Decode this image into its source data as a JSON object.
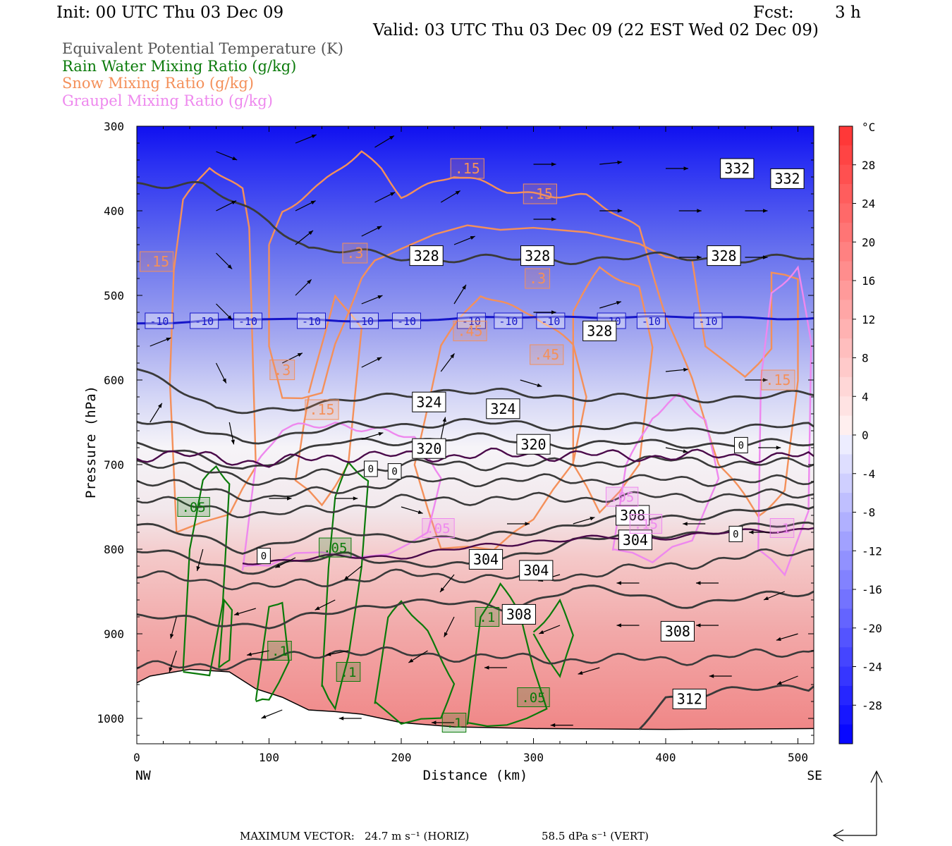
{
  "header": {
    "init": "Init: 00 UTC Thu 03 Dec 09",
    "fcst_label": "Fcst:",
    "fcst_value": "3 h",
    "valid": "Valid: 03 UTC Thu 03 Dec 09 (22 EST Wed 02 Dec 09)"
  },
  "legend": [
    {
      "text": "Equivalent Potential Temperature (K)",
      "color": "#555555"
    },
    {
      "text": "Rain Water Mixing Ratio (g/kg)",
      "color": "#0a7a0a"
    },
    {
      "text": "Snow Mixing Ratio (g/kg)",
      "color": "#f4905a"
    },
    {
      "text": "Graupel Mixing Ratio (g/kg)",
      "color": "#ee88ee"
    }
  ],
  "footer": {
    "max_vector_label": "MAXIMUM VECTOR:",
    "horiz": "24.7 m s⁻¹ (HORIZ)",
    "vert": "58.5 dPa s⁻¹ (VERT)"
  },
  "colors": {
    "theta_e": "#3a3a3a",
    "rain": "#0a7a0a",
    "snow": "#f4905a",
    "graupel": "#ee88ee",
    "isotherm_0": "#4a0a4a",
    "isotherm_m10": "#1515c8"
  },
  "chart_data": {
    "type": "cross-section contour",
    "xlabel": "Distance (km)",
    "ylabel": "Pressure (hPa)",
    "x_end_labels": {
      "left": "NW",
      "right": "SE"
    },
    "xlim": [
      0,
      512
    ],
    "ylim": [
      1030,
      300
    ],
    "x_ticks": [
      0,
      100,
      200,
      300,
      400,
      500
    ],
    "y_ticks": [
      300,
      400,
      500,
      600,
      700,
      800,
      900,
      1000
    ],
    "colorbar": {
      "unit": "°C",
      "ticks": [
        28,
        24,
        20,
        16,
        12,
        8,
        4,
        0,
        -4,
        -8,
        -12,
        -16,
        -20,
        -24,
        -28
      ],
      "range": [
        -32,
        32
      ]
    },
    "theta_e_contours": [
      {
        "label": "332",
        "points": [
          [
            0,
            367
          ],
          [
            50,
            372
          ],
          [
            100,
            410
          ],
          [
            130,
            445
          ],
          [
            200,
            455
          ],
          [
            300,
            458
          ],
          [
            400,
            455
          ],
          [
            512,
            457
          ]
        ]
      },
      {
        "label": "328",
        "points": [
          [
            0,
            583
          ],
          [
            60,
            638
          ],
          [
            150,
            628
          ],
          [
            220,
            612
          ],
          [
            300,
            618
          ],
          [
            400,
            622
          ],
          [
            512,
            618
          ]
        ]
      },
      {
        "label": "324",
        "points": [
          [
            0,
            645
          ],
          [
            80,
            672
          ],
          [
            160,
            655
          ],
          [
            240,
            650
          ],
          [
            330,
            655
          ],
          [
            420,
            658
          ],
          [
            512,
            655
          ]
        ]
      },
      {
        "label": "320",
        "points": [
          [
            0,
            675
          ],
          [
            80,
            705
          ],
          [
            150,
            675
          ],
          [
            250,
            668
          ],
          [
            330,
            676
          ],
          [
            420,
            675
          ],
          [
            512,
            676
          ]
        ]
      },
      {
        "label": "308",
        "points": [
          [
            0,
            770
          ],
          [
            80,
            800
          ],
          [
            150,
            780
          ],
          [
            250,
            790
          ],
          [
            330,
            770
          ],
          [
            420,
            760
          ],
          [
            512,
            750
          ]
        ]
      },
      {
        "label": "304",
        "points": [
          [
            0,
            800
          ],
          [
            80,
            825
          ],
          [
            160,
            808
          ],
          [
            250,
            822
          ],
          [
            330,
            790
          ],
          [
            420,
            780
          ],
          [
            512,
            770
          ]
        ]
      },
      {
        "label": "308",
        "points": [
          [
            0,
            880
          ],
          [
            100,
            890
          ],
          [
            200,
            860
          ],
          [
            280,
            870
          ],
          [
            330,
            845
          ],
          [
            420,
            865
          ],
          [
            512,
            850
          ]
        ]
      },
      {
        "label": "312",
        "points": [
          [
            380,
            1010
          ],
          [
            400,
            975
          ],
          [
            450,
            968
          ],
          [
            512,
            962
          ]
        ]
      }
    ],
    "theta_e_labels": [
      {
        "text": "332",
        "x": 454,
        "p": 350
      },
      {
        "text": "332",
        "x": 492,
        "p": 362
      },
      {
        "text": "328",
        "x": 219,
        "p": 453
      },
      {
        "text": "328",
        "x": 303,
        "p": 453
      },
      {
        "text": "328",
        "x": 444,
        "p": 453
      },
      {
        "text": "328",
        "x": 350,
        "p": 542
      },
      {
        "text": "324",
        "x": 221,
        "p": 626
      },
      {
        "text": "324",
        "x": 277,
        "p": 634
      },
      {
        "text": "320",
        "x": 221,
        "p": 681
      },
      {
        "text": "320",
        "x": 300,
        "p": 676
      },
      {
        "text": "308",
        "x": 375,
        "p": 760
      },
      {
        "text": "304",
        "x": 377,
        "p": 789
      },
      {
        "text": "304",
        "x": 264,
        "p": 812
      },
      {
        "text": "304",
        "x": 302,
        "p": 825
      },
      {
        "text": "308",
        "x": 289,
        "p": 877
      },
      {
        "text": "308",
        "x": 409,
        "p": 897
      },
      {
        "text": "312",
        "x": 418,
        "p": 977
      }
    ],
    "isotherm_minus10": {
      "label": "-10",
      "points": [
        [
          0,
          533
        ],
        [
          100,
          528
        ],
        [
          200,
          530
        ],
        [
          300,
          525
        ],
        [
          400,
          526
        ],
        [
          512,
          527
        ]
      ],
      "label_x": [
        17,
        51,
        84,
        132,
        172,
        204,
        253,
        281,
        313,
        359,
        389,
        432
      ]
    },
    "rain_labels": [
      ".05",
      ".1",
      ".1",
      ".1",
      ".05",
      ".05",
      ".1"
    ],
    "snow_labels": [
      ".15",
      ".15",
      ".15",
      ".3",
      ".3",
      ".45",
      ".45",
      ".3",
      ".15",
      ".15"
    ],
    "graupel_labels": [
      ".05",
      ".05",
      ".15",
      ".1"
    ],
    "zero_labels": [
      "0",
      "0",
      "0",
      "0",
      "0"
    ]
  }
}
